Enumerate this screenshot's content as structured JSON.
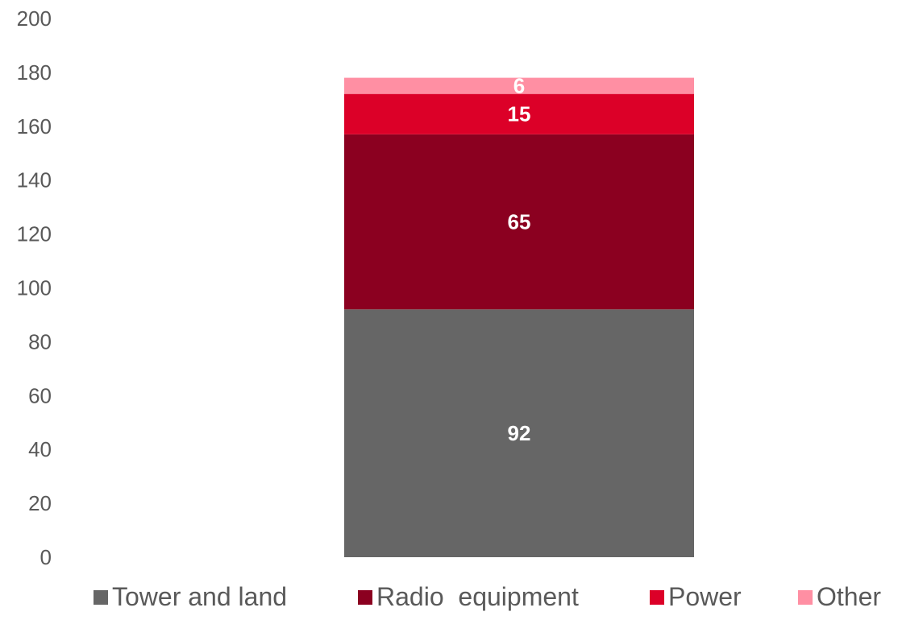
{
  "chart_data": {
    "type": "bar",
    "stacked": true,
    "categories": [
      ""
    ],
    "series": [
      {
        "name": "Tower and land",
        "values": [
          92
        ],
        "color": "#666666"
      },
      {
        "name": "Radio  equipment",
        "values": [
          65
        ],
        "color": "#8B0020"
      },
      {
        "name": "Power",
        "values": [
          15
        ],
        "color": "#DC0028"
      },
      {
        "name": "Other",
        "values": [
          6
        ],
        "color": "#FF8FA3"
      }
    ],
    "data_labels": [
      "92",
      "65",
      "15",
      "6"
    ],
    "title": "",
    "xlabel": "",
    "ylabel": "",
    "ylim": [
      0,
      200
    ],
    "yticks": [
      "0",
      "20",
      "40",
      "60",
      "80",
      "100",
      "120",
      "140",
      "160",
      "180",
      "200"
    ],
    "grid": false,
    "legend_position": "bottom"
  }
}
